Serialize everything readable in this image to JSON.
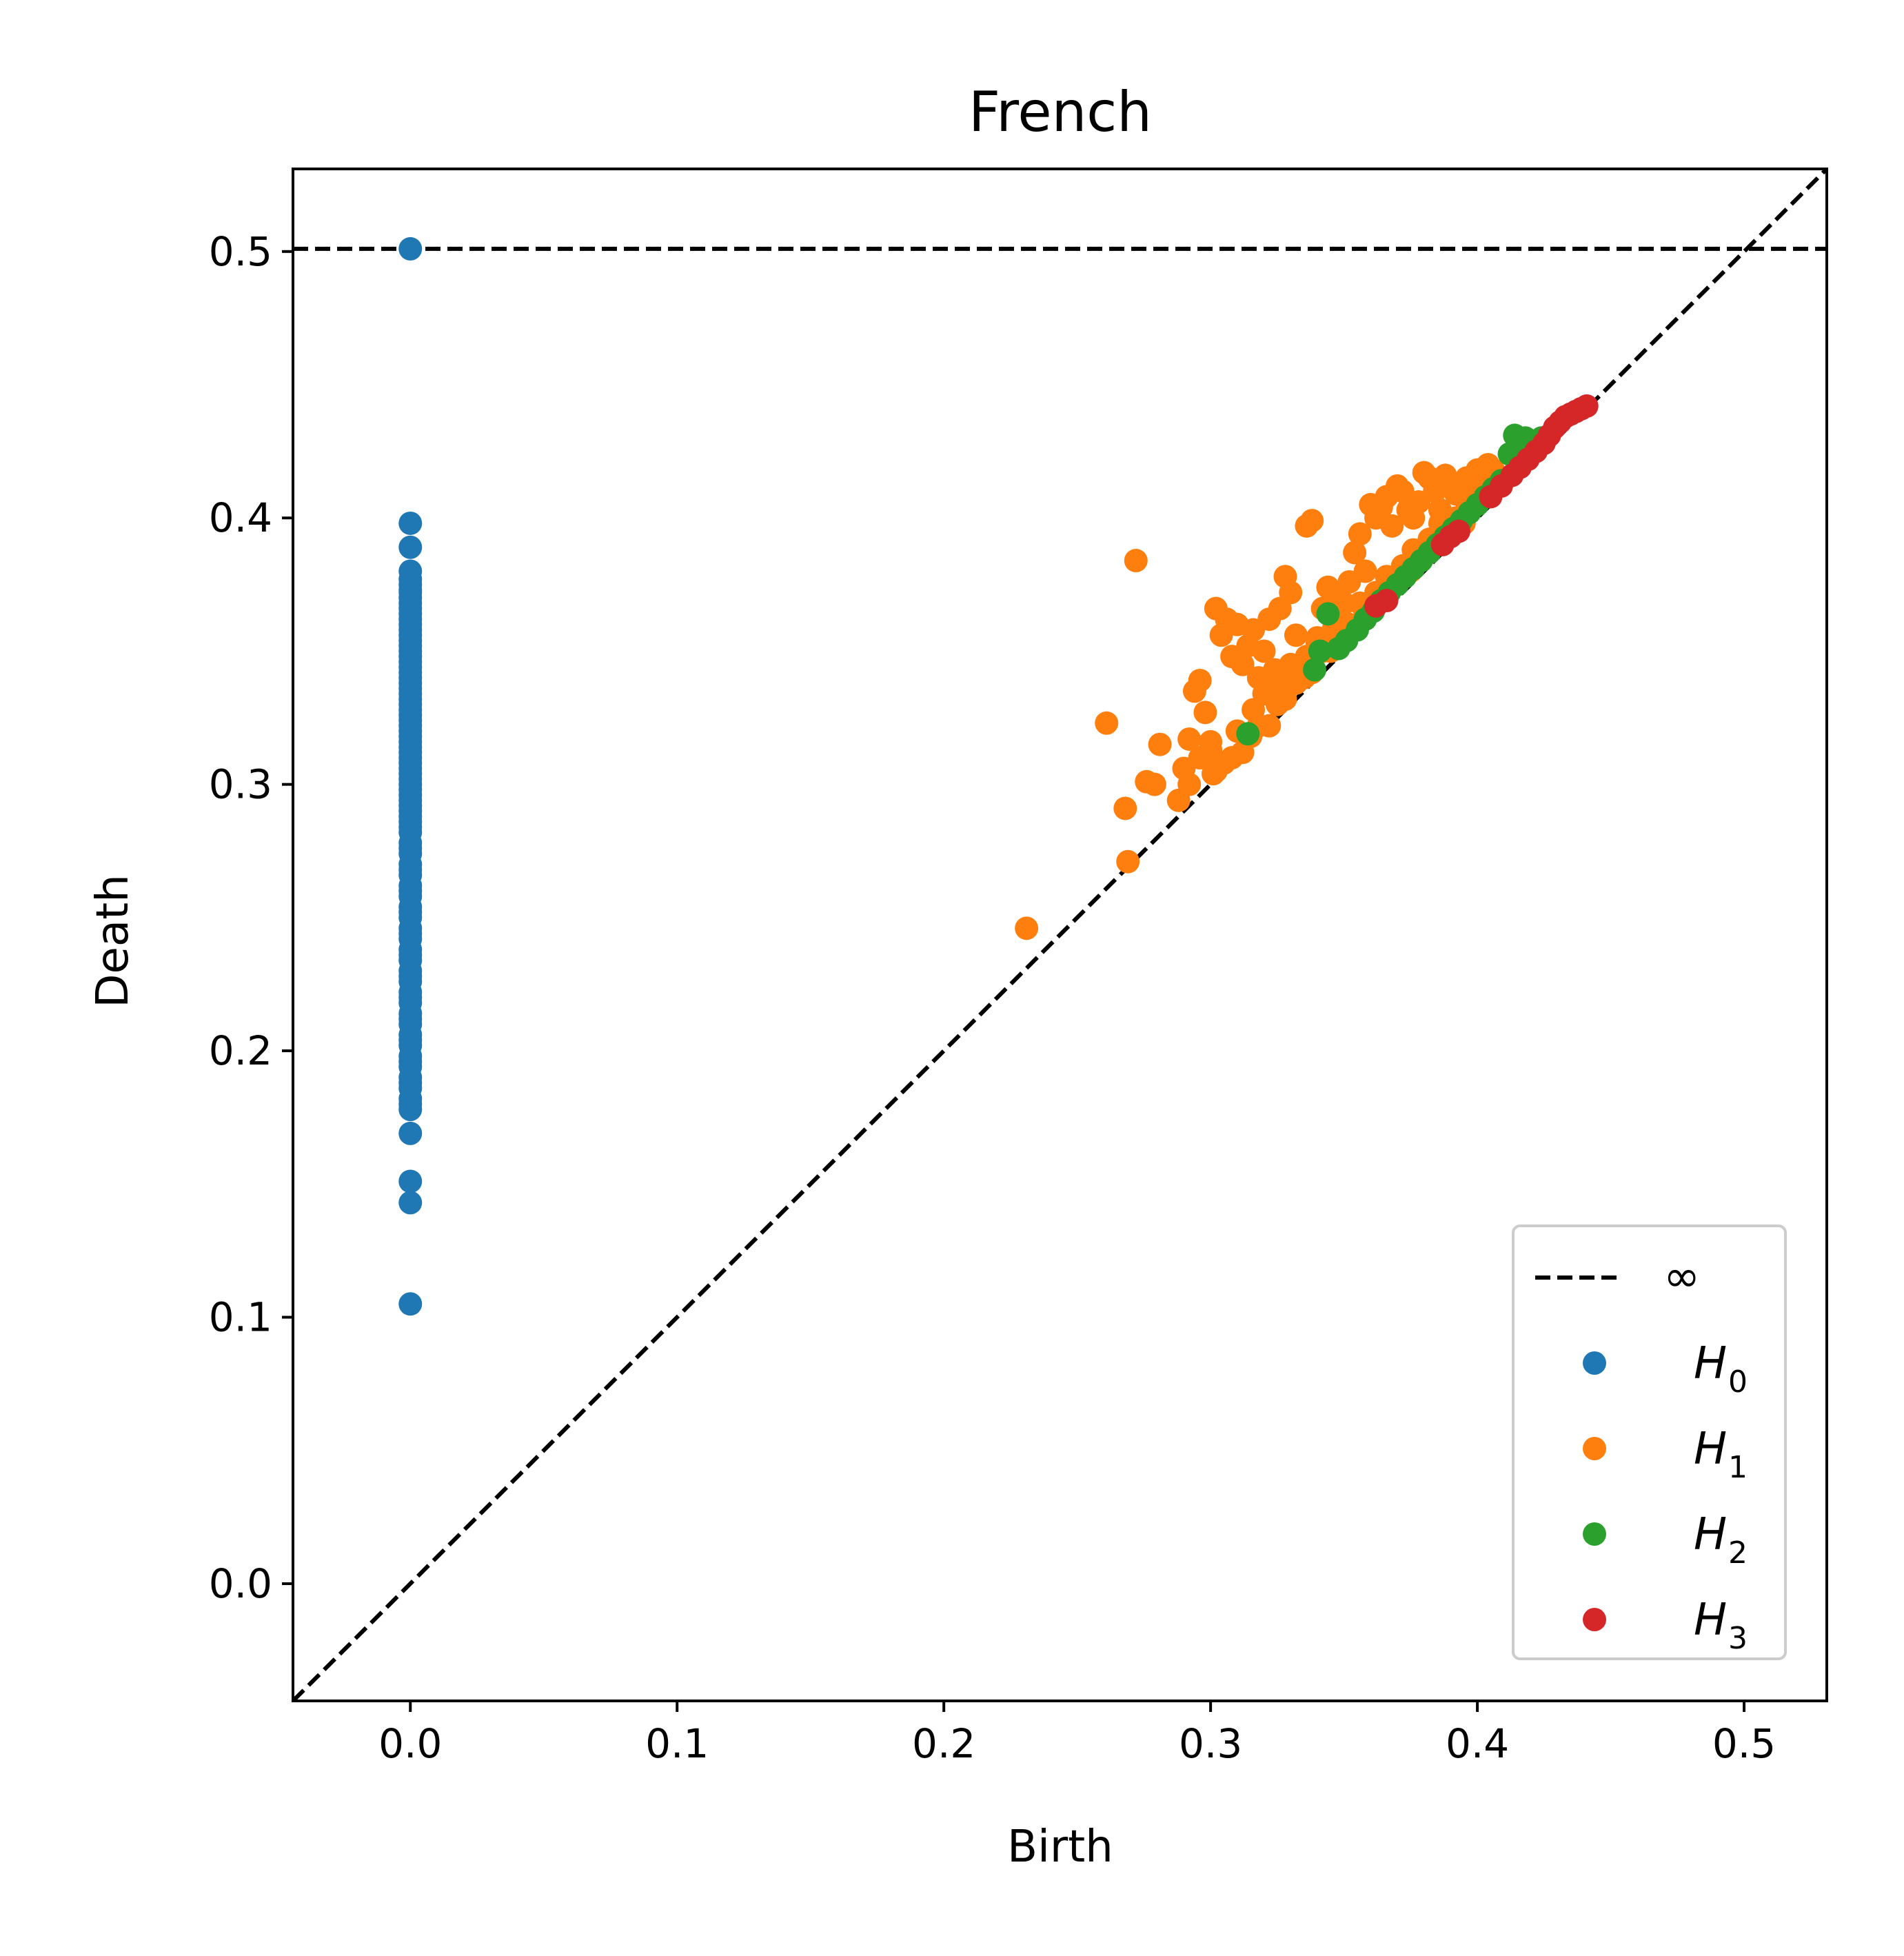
{
  "chart_data": {
    "type": "scatter",
    "title": "French",
    "xlabel": "Birth",
    "ylabel": "Death",
    "xlim": [
      -0.044,
      0.531
    ],
    "ylim": [
      -0.044,
      0.531
    ],
    "xticks": [
      "0.0",
      "0.1",
      "0.2",
      "0.3",
      "0.4",
      "0.5"
    ],
    "yticks": [
      "0.0",
      "0.1",
      "0.2",
      "0.3",
      "0.4",
      "0.5"
    ],
    "grid": false,
    "legend_position": "lower-right",
    "infinity_line": {
      "label": "∞",
      "y": 0.501,
      "color": "#000000",
      "style": "dashed"
    },
    "diagonal_line": {
      "style": "dashed",
      "color": "#000000"
    },
    "series": [
      {
        "name": "H",
        "subscript": "0",
        "color": "#1f77b4",
        "x": [
          0,
          0,
          0,
          0,
          0,
          0,
          0,
          0,
          0,
          0,
          0,
          0,
          0,
          0,
          0,
          0,
          0,
          0,
          0,
          0,
          0,
          0,
          0,
          0,
          0,
          0,
          0,
          0,
          0,
          0,
          0,
          0,
          0,
          0,
          0,
          0,
          0,
          0,
          0,
          0,
          0,
          0,
          0,
          0,
          0,
          0,
          0,
          0,
          0,
          0,
          0,
          0,
          0,
          0,
          0,
          0,
          0,
          0,
          0,
          0,
          0,
          0,
          0,
          0,
          0,
          0,
          0,
          0,
          0,
          0,
          0,
          0,
          0,
          0,
          0,
          0,
          0,
          0,
          0,
          0,
          0,
          0,
          0,
          0,
          0,
          0,
          0,
          0,
          0,
          0,
          0,
          0,
          0,
          0,
          0,
          0
        ],
        "y": [
          0.501,
          0.398,
          0.389,
          0.38,
          0.377,
          0.373,
          0.37,
          0.366,
          0.362,
          0.358,
          0.354,
          0.35,
          0.346,
          0.342,
          0.338,
          0.334,
          0.33,
          0.326,
          0.322,
          0.318,
          0.314,
          0.31,
          0.306,
          0.302,
          0.298,
          0.294,
          0.29,
          0.286,
          0.282,
          0.278,
          0.274,
          0.27,
          0.266,
          0.262,
          0.258,
          0.254,
          0.25,
          0.246,
          0.242,
          0.238,
          0.234,
          0.23,
          0.226,
          0.222,
          0.218,
          0.214,
          0.21,
          0.206,
          0.202,
          0.198,
          0.194,
          0.19,
          0.186,
          0.182,
          0.178,
          0.169,
          0.151,
          0.143,
          0.105,
          0.372,
          0.364,
          0.356,
          0.348,
          0.34,
          0.332,
          0.324,
          0.316,
          0.308,
          0.3,
          0.292,
          0.284,
          0.276,
          0.268,
          0.26,
          0.252,
          0.244,
          0.236,
          0.228,
          0.22,
          0.212,
          0.204,
          0.196,
          0.188,
          0.18,
          0.375,
          0.368,
          0.36,
          0.352,
          0.344,
          0.336,
          0.328,
          0.32,
          0.312,
          0.304,
          0.296,
          0.288
        ]
      },
      {
        "name": "H",
        "subscript": "1",
        "color": "#ff7f0e",
        "x": [
          0.231,
          0.269,
          0.268,
          0.261,
          0.272,
          0.276,
          0.279,
          0.281,
          0.288,
          0.29,
          0.292,
          0.294,
          0.296,
          0.298,
          0.3,
          0.302,
          0.304,
          0.306,
          0.308,
          0.31,
          0.312,
          0.314,
          0.316,
          0.318,
          0.32,
          0.322,
          0.324,
          0.326,
          0.328,
          0.33,
          0.332,
          0.334,
          0.336,
          0.338,
          0.34,
          0.342,
          0.344,
          0.346,
          0.348,
          0.35,
          0.352,
          0.354,
          0.356,
          0.358,
          0.36,
          0.362,
          0.364,
          0.366,
          0.368,
          0.37,
          0.372,
          0.374,
          0.376,
          0.378,
          0.38,
          0.382,
          0.384,
          0.386,
          0.388,
          0.39,
          0.392,
          0.394,
          0.396,
          0.398,
          0.4,
          0.402,
          0.404,
          0.406,
          0.3,
          0.31,
          0.32,
          0.33,
          0.34,
          0.301,
          0.312,
          0.322,
          0.332,
          0.342,
          0.352,
          0.362,
          0.372,
          0.382,
          0.392,
          0.402,
          0.305,
          0.315,
          0.325,
          0.335,
          0.345,
          0.355,
          0.365,
          0.375,
          0.385,
          0.395,
          0.405,
          0.308,
          0.318,
          0.328,
          0.338,
          0.348,
          0.358,
          0.368,
          0.378,
          0.388,
          0.398,
          0.408,
          0.302,
          0.292,
          0.296,
          0.316,
          0.326,
          0.336,
          0.346,
          0.356,
          0.366,
          0.376,
          0.386,
          0.396
        ],
        "y": [
          0.246,
          0.271,
          0.291,
          0.323,
          0.384,
          0.301,
          0.3,
          0.315,
          0.294,
          0.306,
          0.317,
          0.335,
          0.339,
          0.327,
          0.313,
          0.366,
          0.356,
          0.362,
          0.348,
          0.36,
          0.345,
          0.352,
          0.358,
          0.34,
          0.35,
          0.362,
          0.343,
          0.366,
          0.378,
          0.372,
          0.356,
          0.345,
          0.397,
          0.399,
          0.355,
          0.366,
          0.374,
          0.362,
          0.372,
          0.368,
          0.376,
          0.387,
          0.394,
          0.38,
          0.405,
          0.4,
          0.404,
          0.408,
          0.397,
          0.412,
          0.41,
          0.403,
          0.4,
          0.406,
          0.417,
          0.415,
          0.41,
          0.403,
          0.416,
          0.412,
          0.409,
          0.41,
          0.415,
          0.412,
          0.418,
          0.415,
          0.42,
          0.418,
          0.316,
          0.32,
          0.334,
          0.345,
          0.353,
          0.304,
          0.312,
          0.322,
          0.338,
          0.35,
          0.36,
          0.372,
          0.382,
          0.392,
          0.4,
          0.41,
          0.308,
          0.318,
          0.33,
          0.34,
          0.35,
          0.36,
          0.37,
          0.38,
          0.39,
          0.398,
          0.408,
          0.31,
          0.322,
          0.332,
          0.342,
          0.352,
          0.364,
          0.374,
          0.386,
          0.396,
          0.404,
          0.414,
          0.305,
          0.3,
          0.31,
          0.328,
          0.338,
          0.348,
          0.358,
          0.368,
          0.378,
          0.388,
          0.398,
          0.406
        ]
      },
      {
        "name": "H",
        "subscript": "2",
        "color": "#2ca02c",
        "x": [
          0.314,
          0.339,
          0.341,
          0.344,
          0.348,
          0.351,
          0.355,
          0.358,
          0.361,
          0.364,
          0.367,
          0.37,
          0.373,
          0.376,
          0.379,
          0.382,
          0.385,
          0.388,
          0.391,
          0.394,
          0.397,
          0.4,
          0.403,
          0.406,
          0.409,
          0.412,
          0.414,
          0.416,
          0.418,
          0.42,
          0.422,
          0.424
        ],
        "y": [
          0.319,
          0.343,
          0.35,
          0.364,
          0.351,
          0.354,
          0.358,
          0.362,
          0.365,
          0.369,
          0.372,
          0.375,
          0.378,
          0.381,
          0.384,
          0.387,
          0.39,
          0.393,
          0.396,
          0.399,
          0.402,
          0.405,
          0.408,
          0.411,
          0.414,
          0.424,
          0.431,
          0.428,
          0.43,
          0.425,
          0.428,
          0.43
        ]
      },
      {
        "name": "H",
        "subscript": "3",
        "color": "#d62728",
        "x": [
          0.362,
          0.366,
          0.387,
          0.39,
          0.393,
          0.405,
          0.409,
          0.413,
          0.416,
          0.419,
          0.422,
          0.425,
          0.427,
          0.429,
          0.431,
          0.433,
          0.435,
          0.437,
          0.439,
          0.441
        ],
        "y": [
          0.367,
          0.369,
          0.39,
          0.393,
          0.395,
          0.408,
          0.412,
          0.416,
          0.419,
          0.422,
          0.425,
          0.428,
          0.431,
          0.434,
          0.436,
          0.438,
          0.439,
          0.44,
          0.441,
          0.442
        ]
      }
    ]
  }
}
